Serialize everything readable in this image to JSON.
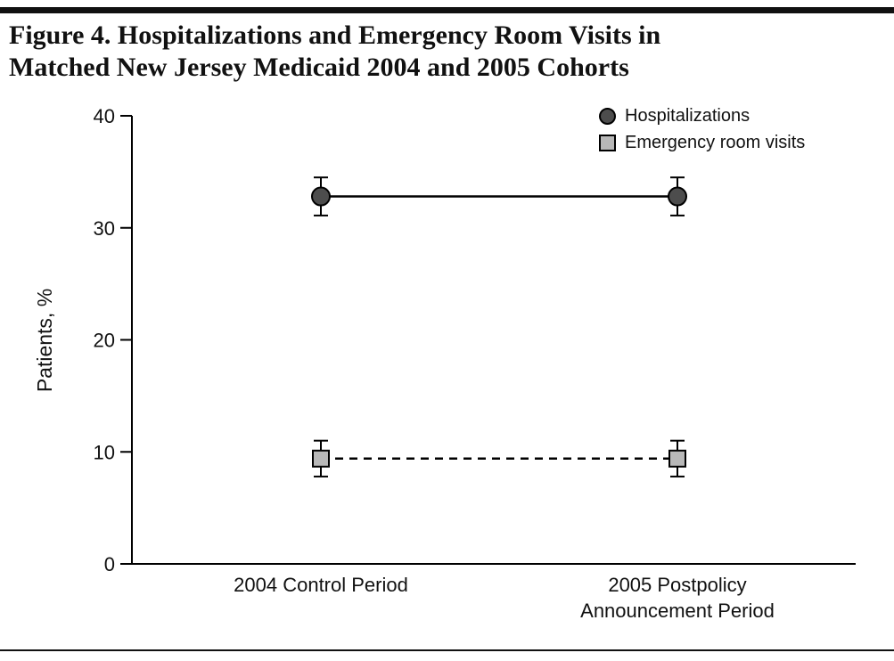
{
  "figure": {
    "title_line1": "Figure 4. Hospitalizations and Emergency Room Visits in",
    "title_line2": "Matched New Jersey Medicaid 2004 and 2005 Cohorts"
  },
  "chart_data": {
    "type": "line",
    "categories": [
      "2004 Control Period",
      "2005 Postpolicy\nAnnouncement Period"
    ],
    "series": [
      {
        "name": "Hospitalizations",
        "values": [
          32.8,
          32.8
        ],
        "error": [
          1.7,
          1.7
        ],
        "marker": "circle",
        "marker_fill": "#4d4d4d",
        "line_style": "solid"
      },
      {
        "name": "Emergency room visits",
        "values": [
          9.4,
          9.4
        ],
        "error": [
          1.6,
          1.6
        ],
        "marker": "square",
        "marker_fill": "#b8b8b8",
        "line_style": "dashed"
      }
    ],
    "title": "",
    "xlabel": "",
    "ylabel": "Patients, %",
    "ylim": [
      0,
      40
    ],
    "yticks": [
      0,
      10,
      20,
      30,
      40
    ],
    "grid": false,
    "legend_position": "top-right",
    "axis_color": "#000000"
  }
}
